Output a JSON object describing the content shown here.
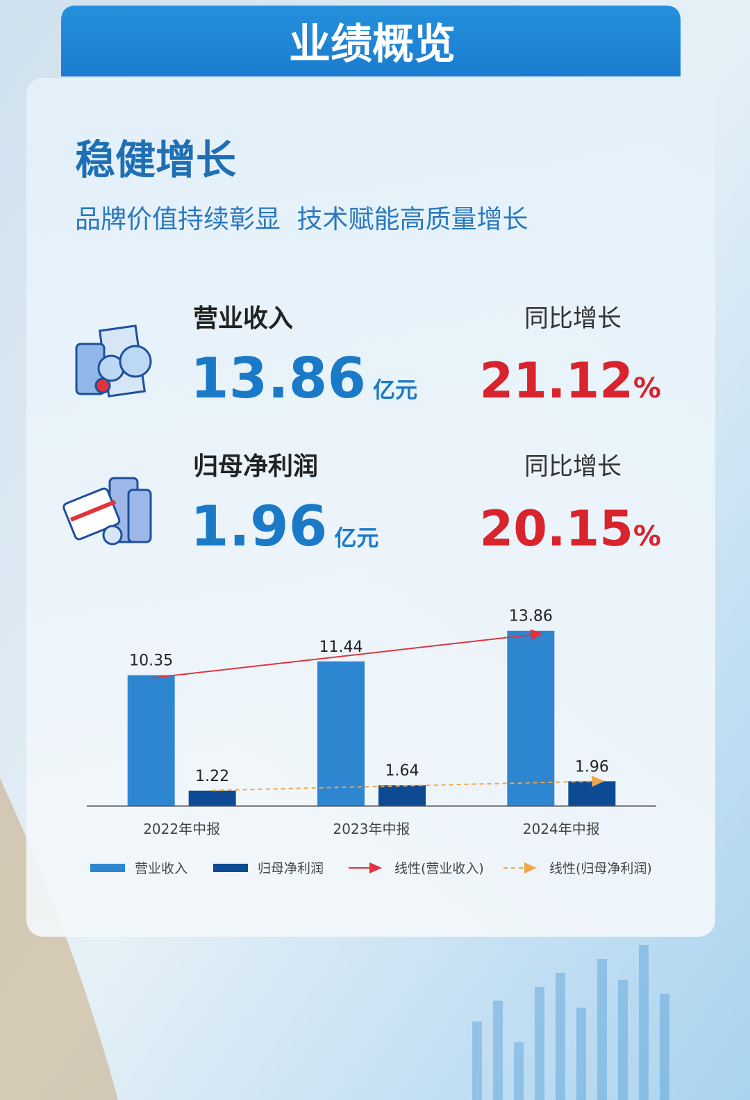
{
  "header": {
    "title": "业绩概览"
  },
  "section": {
    "title": "稳健增长",
    "subtitle": "品牌价值持续彰显  技术赋能高质量增长"
  },
  "metrics": [
    {
      "label": "营业收入",
      "value": 13.86,
      "unit": "亿元",
      "growth_label": "同比增长",
      "growth": 21.12,
      "growth_unit": "%"
    },
    {
      "label": "归母净利润",
      "value": 1.96,
      "unit": "亿元",
      "growth_label": "同比增长",
      "growth": 20.15,
      "growth_unit": "%"
    }
  ],
  "chart_data": {
    "type": "bar",
    "categories": [
      "2022年中报",
      "2023年中报",
      "2024年中报"
    ],
    "series": [
      {
        "name": "营业收入",
        "color": "#2f86d0",
        "values": [
          10.35,
          11.44,
          13.86
        ]
      },
      {
        "name": "归母净利润",
        "color": "#0d4a94",
        "values": [
          1.22,
          1.64,
          1.96
        ]
      }
    ],
    "trendlines": [
      {
        "name": "线性(营业收入)",
        "color": "#e0343c",
        "series": 0,
        "dashed": false
      },
      {
        "name": "线性(归母净利润)",
        "color": "#f0a64a",
        "series": 1,
        "dashed": true
      }
    ],
    "ylim": [
      0,
      15
    ]
  }
}
